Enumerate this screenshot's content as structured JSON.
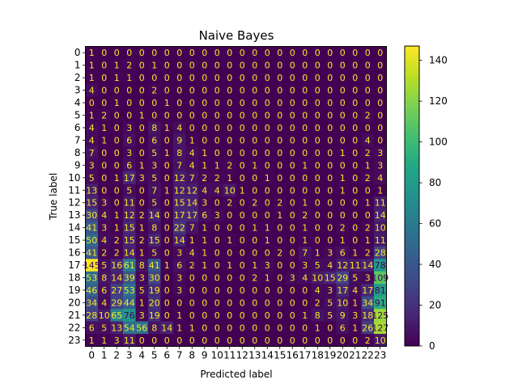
{
  "chart_data": {
    "type": "heatmap",
    "title": "Naive Bayes",
    "xlabel": "Predicted label",
    "ylabel": "True label",
    "x_categories": [
      "0",
      "1",
      "2",
      "3",
      "4",
      "5",
      "6",
      "7",
      "8",
      "9",
      "10",
      "11",
      "12",
      "13",
      "14",
      "15",
      "16",
      "17",
      "18",
      "19",
      "20",
      "21",
      "22",
      "23"
    ],
    "y_categories": [
      "0",
      "1",
      "2",
      "3",
      "4",
      "5",
      "6",
      "7",
      "8",
      "9",
      "10",
      "11",
      "12",
      "13",
      "14",
      "15",
      "16",
      "17",
      "18",
      "19",
      "20",
      "21",
      "22",
      "23"
    ],
    "values": [
      [
        1,
        0,
        0,
        0,
        0,
        0,
        0,
        0,
        0,
        0,
        0,
        0,
        0,
        0,
        0,
        0,
        0,
        0,
        0,
        0,
        0,
        0,
        0,
        0
      ],
      [
        1,
        0,
        1,
        2,
        0,
        1,
        0,
        0,
        0,
        0,
        0,
        0,
        0,
        0,
        0,
        0,
        0,
        0,
        0,
        0,
        0,
        0,
        0,
        0
      ],
      [
        1,
        0,
        1,
        1,
        0,
        0,
        0,
        0,
        0,
        0,
        0,
        0,
        0,
        0,
        0,
        0,
        0,
        0,
        0,
        0,
        0,
        0,
        0,
        0
      ],
      [
        4,
        0,
        0,
        0,
        0,
        2,
        0,
        0,
        0,
        0,
        0,
        0,
        0,
        0,
        0,
        0,
        0,
        0,
        0,
        0,
        0,
        0,
        0,
        0
      ],
      [
        0,
        0,
        1,
        0,
        0,
        0,
        1,
        0,
        0,
        0,
        0,
        0,
        0,
        0,
        0,
        0,
        0,
        0,
        0,
        0,
        0,
        0,
        0,
        0
      ],
      [
        1,
        2,
        0,
        0,
        1,
        0,
        0,
        0,
        0,
        0,
        0,
        0,
        0,
        0,
        0,
        0,
        0,
        0,
        0,
        0,
        0,
        0,
        2,
        0
      ],
      [
        4,
        1,
        0,
        3,
        0,
        8,
        1,
        4,
        0,
        0,
        0,
        0,
        0,
        0,
        0,
        0,
        0,
        0,
        0,
        0,
        0,
        0,
        0,
        0
      ],
      [
        4,
        1,
        0,
        6,
        0,
        6,
        0,
        9,
        1,
        0,
        0,
        0,
        0,
        0,
        0,
        0,
        0,
        0,
        0,
        0,
        0,
        0,
        4,
        0
      ],
      [
        7,
        0,
        0,
        3,
        0,
        5,
        1,
        8,
        4,
        1,
        0,
        0,
        0,
        0,
        0,
        0,
        0,
        0,
        0,
        0,
        1,
        0,
        2,
        3
      ],
      [
        3,
        0,
        0,
        6,
        1,
        3,
        0,
        7,
        4,
        1,
        1,
        2,
        0,
        1,
        0,
        0,
        0,
        1,
        0,
        0,
        0,
        0,
        1,
        3
      ],
      [
        5,
        0,
        1,
        17,
        3,
        5,
        0,
        12,
        7,
        2,
        2,
        1,
        0,
        0,
        1,
        0,
        0,
        0,
        0,
        0,
        1,
        0,
        2,
        4
      ],
      [
        13,
        0,
        0,
        5,
        0,
        7,
        1,
        12,
        12,
        4,
        4,
        10,
        1,
        0,
        0,
        0,
        0,
        0,
        0,
        0,
        1,
        0,
        0,
        1
      ],
      [
        15,
        3,
        0,
        11,
        0,
        5,
        0,
        15,
        14,
        3,
        0,
        2,
        0,
        2,
        0,
        2,
        0,
        1,
        0,
        0,
        0,
        0,
        1,
        11
      ],
      [
        30,
        4,
        1,
        12,
        2,
        14,
        0,
        17,
        17,
        6,
        3,
        0,
        0,
        0,
        0,
        1,
        0,
        2,
        0,
        0,
        0,
        0,
        0,
        14
      ],
      [
        41,
        3,
        1,
        15,
        1,
        8,
        0,
        22,
        7,
        1,
        0,
        0,
        0,
        1,
        1,
        0,
        0,
        1,
        0,
        0,
        2,
        0,
        2,
        10
      ],
      [
        50,
        4,
        2,
        15,
        2,
        15,
        0,
        14,
        1,
        1,
        0,
        1,
        0,
        0,
        1,
        0,
        0,
        1,
        0,
        0,
        1,
        0,
        1,
        11
      ],
      [
        41,
        2,
        2,
        14,
        1,
        5,
        0,
        3,
        4,
        1,
        0,
        0,
        0,
        0,
        0,
        2,
        0,
        7,
        1,
        3,
        6,
        1,
        2,
        28
      ],
      [
        145,
        5,
        16,
        61,
        8,
        41,
        1,
        6,
        2,
        1,
        0,
        1,
        0,
        1,
        3,
        0,
        0,
        3,
        5,
        4,
        12,
        11,
        14,
        78
      ],
      [
        53,
        8,
        14,
        39,
        3,
        30,
        0,
        3,
        0,
        0,
        0,
        0,
        0,
        2,
        1,
        0,
        3,
        4,
        10,
        15,
        29,
        5,
        3,
        109
      ],
      [
        46,
        6,
        27,
        53,
        5,
        19,
        0,
        3,
        0,
        0,
        0,
        0,
        0,
        0,
        0,
        0,
        0,
        0,
        4,
        3,
        17,
        4,
        17,
        81
      ],
      [
        34,
        4,
        29,
        44,
        1,
        20,
        0,
        0,
        0,
        0,
        0,
        0,
        0,
        0,
        0,
        0,
        0,
        0,
        2,
        5,
        10,
        1,
        34,
        91
      ],
      [
        28,
        10,
        65,
        76,
        3,
        19,
        0,
        1,
        0,
        0,
        0,
        0,
        0,
        0,
        0,
        0,
        0,
        1,
        8,
        5,
        9,
        3,
        18,
        125
      ],
      [
        6,
        5,
        13,
        54,
        56,
        8,
        14,
        1,
        1,
        0,
        0,
        0,
        0,
        0,
        0,
        0,
        0,
        0,
        1,
        0,
        6,
        1,
        26,
        127
      ],
      [
        1,
        1,
        3,
        11,
        0,
        0,
        0,
        0,
        0,
        0,
        0,
        0,
        0,
        0,
        0,
        0,
        0,
        0,
        0,
        0,
        0,
        0,
        2,
        10
      ]
    ],
    "colorbar": {
      "min": 0,
      "max": 147,
      "ticks": [
        0,
        20,
        40,
        60,
        80,
        100,
        120,
        140
      ],
      "colormap": "viridis"
    },
    "grid": false
  }
}
